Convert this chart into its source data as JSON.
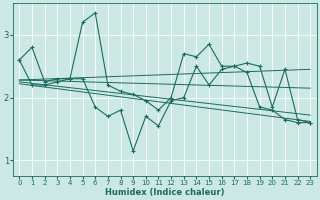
{
  "xlabel": "Humidex (Indice chaleur)",
  "bg_color": "#cce8e4",
  "grid_color": "#ffffff",
  "line_color": "#1a6b5e",
  "xlim": [
    -0.5,
    23.5
  ],
  "ylim": [
    0.75,
    3.5
  ],
  "yticks": [
    1,
    2,
    3
  ],
  "xticks": [
    0,
    1,
    2,
    3,
    4,
    5,
    6,
    7,
    8,
    9,
    10,
    11,
    12,
    13,
    14,
    15,
    16,
    17,
    18,
    19,
    20,
    21,
    22,
    23
  ],
  "series1_x": [
    0,
    1,
    2,
    3,
    4,
    5,
    6,
    7,
    8,
    9,
    10,
    11,
    12,
    13,
    14,
    15,
    16,
    17,
    18,
    19,
    20,
    21,
    22,
    23
  ],
  "series1_y": [
    2.6,
    2.8,
    2.25,
    2.3,
    2.3,
    3.2,
    3.35,
    2.2,
    2.1,
    2.05,
    1.95,
    1.8,
    2.0,
    2.7,
    2.65,
    2.85,
    2.5,
    2.5,
    2.55,
    2.5,
    1.85,
    2.45,
    1.65,
    1.6
  ],
  "series2_x": [
    0,
    1,
    2,
    3,
    4,
    5,
    6,
    7,
    8,
    9,
    10,
    11,
    12,
    13,
    14,
    15,
    16,
    17,
    18,
    19,
    20,
    21,
    22,
    23
  ],
  "series2_y": [
    2.6,
    2.2,
    2.2,
    2.25,
    2.3,
    2.3,
    1.85,
    1.7,
    1.8,
    1.15,
    1.7,
    1.55,
    1.95,
    2.0,
    2.5,
    2.2,
    2.45,
    2.5,
    2.4,
    1.85,
    1.8,
    1.65,
    1.6,
    1.6
  ],
  "trend1_x": [
    0,
    23
  ],
  "trend1_y": [
    2.28,
    2.45
  ],
  "trend2_x": [
    0,
    23
  ],
  "trend2_y": [
    2.28,
    2.15
  ],
  "trend3_x": [
    0,
    23
  ],
  "trend3_y": [
    2.25,
    1.72
  ],
  "trend4_x": [
    0,
    23
  ],
  "trend4_y": [
    2.22,
    1.62
  ]
}
